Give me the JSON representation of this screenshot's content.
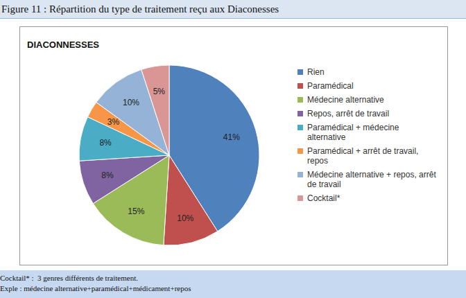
{
  "chart_data": {
    "type": "pie",
    "title": "Figure 11 : Répartition du type de traitement reçu aux Diaconesses",
    "subtitle": "DIACONNESSES",
    "categories": [
      "Rien",
      "Paramédical",
      "Médecine alternative",
      "Repos, arrêt de travail",
      "Paramédical + médecine alternative",
      "Paramédical + arrêt de travail, repos",
      "Médecine alternative + repos, arrêt de travail",
      "Cocktail*"
    ],
    "values": [
      41,
      10,
      15,
      8,
      8,
      3,
      10,
      5
    ],
    "value_labels": [
      "41%",
      "10%",
      "15%",
      "8%",
      "8%",
      "3%",
      "10%",
      "5%"
    ],
    "colors": [
      "#4F81BD",
      "#C0504D",
      "#9BBB59",
      "#8064A2",
      "#4BACC6",
      "#F79646",
      "#95B3D7",
      "#D99694"
    ],
    "data_labels": true,
    "legend": "right",
    "annotations": [
      "Cocktail* :  3 genres différents de traitement.",
      "Exple : médecine alternative+paramédical+médicament+repos"
    ]
  }
}
